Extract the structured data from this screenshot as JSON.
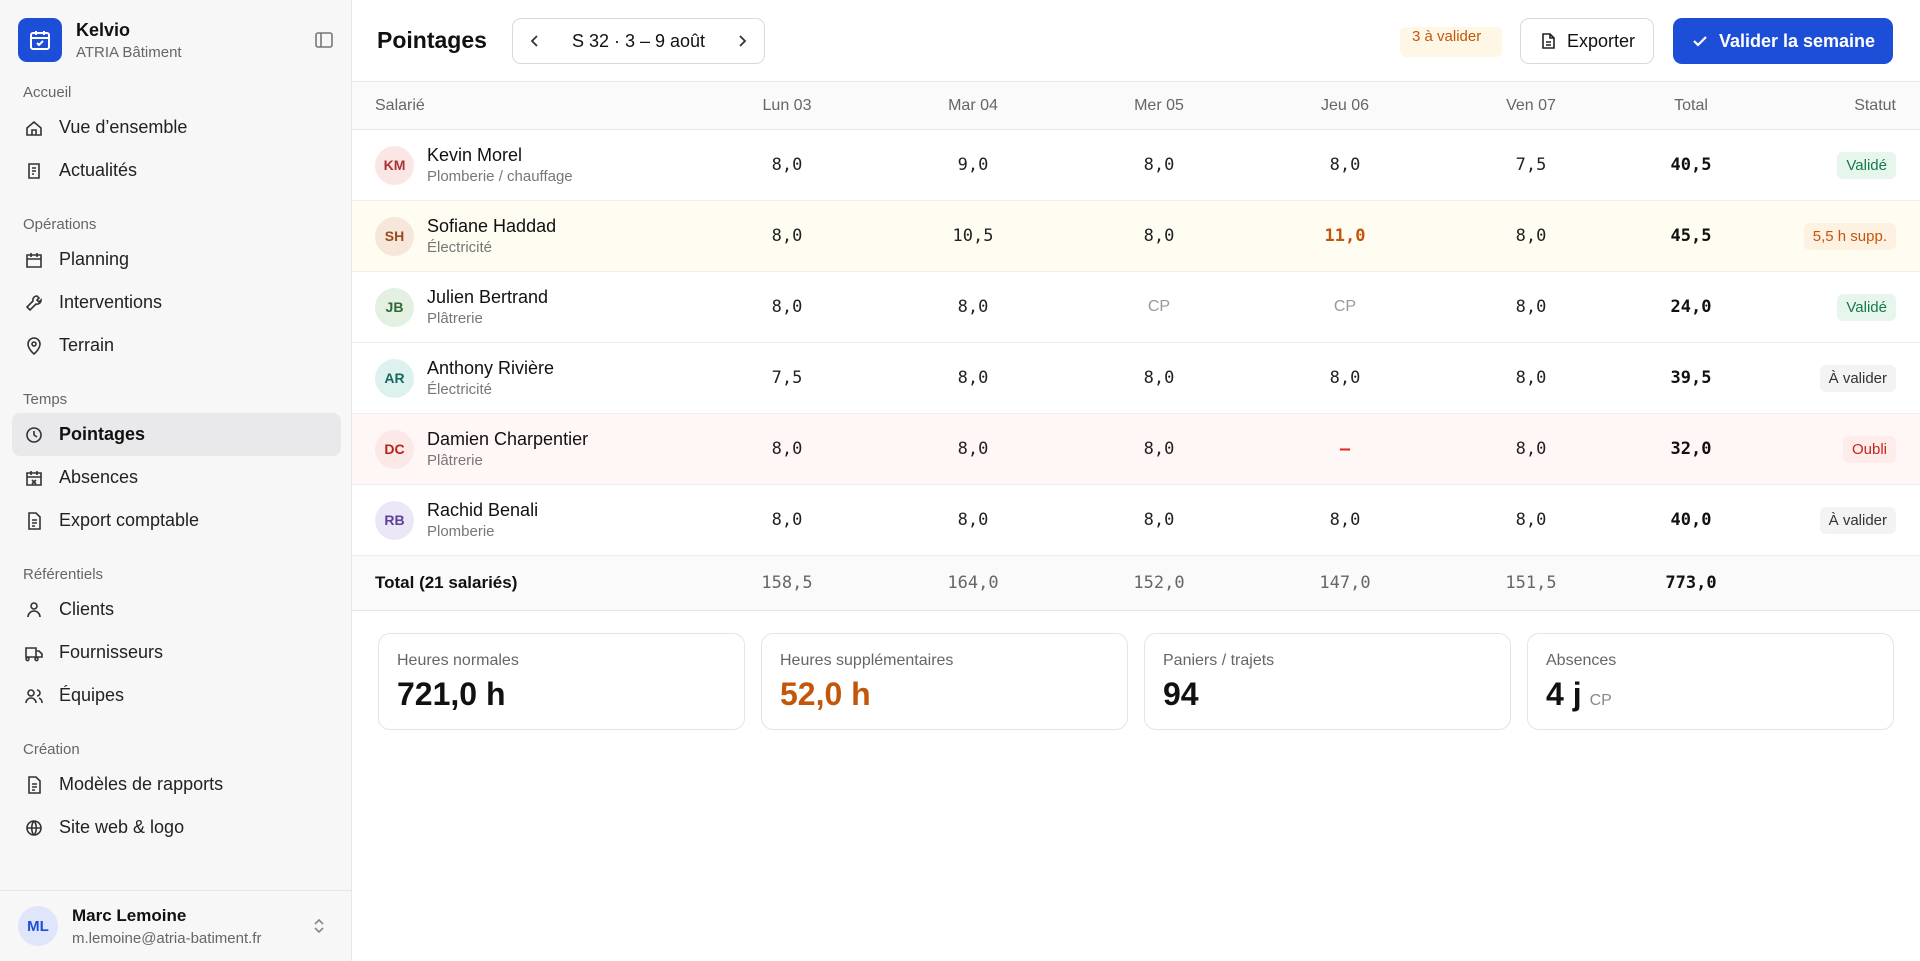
{
  "sidebar": {
    "brand": {
      "name": "Kelvio",
      "company": "ATRIA Bâtiment"
    },
    "sections": [
      {
        "title": "Accueil",
        "items": [
          "Vue d’ensemble",
          "Actualités"
        ]
      },
      {
        "title": "Opérations",
        "items": [
          "Planning",
          "Interventions",
          "Terrain"
        ]
      },
      {
        "title": "Temps",
        "items": [
          "Pointages",
          "Absences",
          "Export comptable"
        ]
      },
      {
        "title": "Référentiels",
        "items": [
          "Clients",
          "Fournisseurs",
          "Équipes"
        ]
      },
      {
        "title": "Création",
        "items": [
          "Modèles de rapports",
          "Site web & logo"
        ]
      }
    ],
    "user": {
      "initials": "ML",
      "name": "Marc Lemoine",
      "email": "m.lemoine@atria-batiment.fr"
    }
  },
  "header": {
    "title": "Pointages",
    "week": "S 32 · 3 – 9 août",
    "pending": "3 à valider",
    "export": "Exporter",
    "validate": "Valider la semaine"
  },
  "table": {
    "columns": [
      "Salarié",
      "Lun 03",
      "Mar 04",
      "Mer 05",
      "Jeu 06",
      "Ven 07",
      "Total",
      "Statut"
    ],
    "rows": [
      {
        "initials": "KM",
        "name": "Kevin Morel",
        "role": "Plomberie / chauffage",
        "hours": [
          "8,0",
          "9,0",
          "8,0",
          "8,0",
          "7,5"
        ],
        "total": "40,5",
        "status": "Validé"
      },
      {
        "initials": "SH",
        "name": "Sofiane Haddad",
        "role": "Électricité",
        "hours": [
          "8,0",
          "10,5",
          "8,0",
          "11,0",
          "8,0"
        ],
        "total": "45,5",
        "status": "5,5 h supp."
      },
      {
        "initials": "JB",
        "name": "Julien Bertrand",
        "role": "Plâtrerie",
        "hours": [
          "8,0",
          "8,0",
          "CP",
          "CP",
          "8,0"
        ],
        "total": "24,0",
        "status": "Validé"
      },
      {
        "initials": "AR",
        "name": "Anthony Rivière",
        "role": "Électricité",
        "hours": [
          "7,5",
          "8,0",
          "8,0",
          "8,0",
          "8,0"
        ],
        "total": "39,5",
        "status": "À valider"
      },
      {
        "initials": "DC",
        "name": "Damien Charpentier",
        "role": "Plâtrerie",
        "hours": [
          "8,0",
          "8,0",
          "8,0",
          "–",
          "8,0"
        ],
        "total": "32,0",
        "status": "Oubli"
      },
      {
        "initials": "RB",
        "name": "Rachid Benali",
        "role": "Plomberie",
        "hours": [
          "8,0",
          "8,0",
          "8,0",
          "8,0",
          "8,0"
        ],
        "total": "40,0",
        "status": "À valider"
      }
    ],
    "total_row": {
      "label": "Total (21 salariés)",
      "hours": [
        "158,5",
        "164,0",
        "152,0",
        "147,0",
        "151,5"
      ],
      "total": "773,0"
    }
  },
  "cards": [
    {
      "label": "Heures normales",
      "value": "721,0 h"
    },
    {
      "label": "Heures supplémentaires",
      "value": "52,0 h"
    },
    {
      "label": "Paniers / trajets",
      "value": "94"
    },
    {
      "label": "Absences",
      "value": "4 j",
      "unit": "CP"
    }
  ]
}
